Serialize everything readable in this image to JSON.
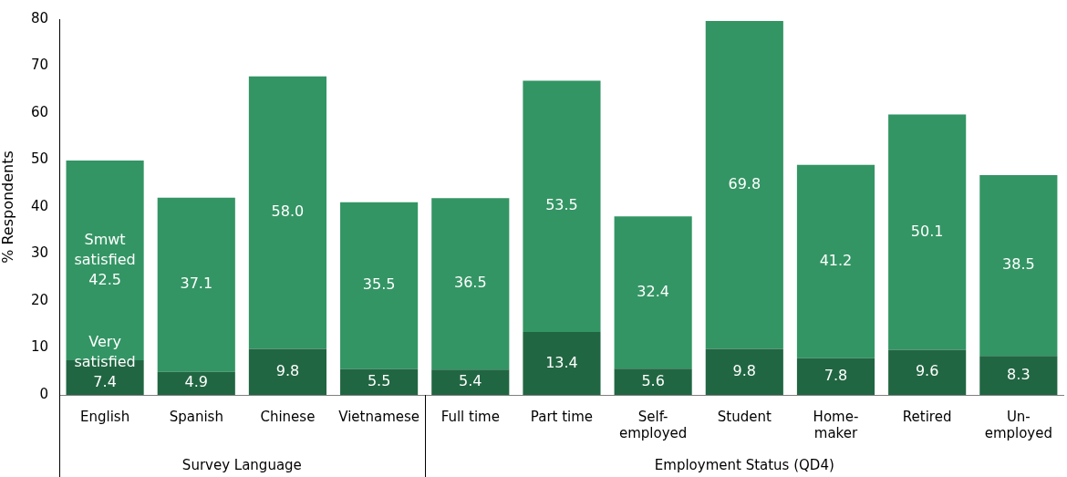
{
  "chart_data": {
    "type": "bar",
    "stacked": true,
    "ylabel": "% Respondents",
    "ylim": [
      0,
      80
    ],
    "yticks": [
      0,
      10,
      20,
      30,
      40,
      50,
      60,
      70,
      80
    ],
    "categories": [
      "English",
      "Spanish",
      "Chinese",
      "Vietnamese",
      "Full time",
      "Part time",
      "Self-employed",
      "Student",
      "Home-maker",
      "Retired",
      "Un-employed"
    ],
    "series": [
      {
        "name": "Very satisfied",
        "color": "#216642",
        "values": [
          7.4,
          4.9,
          9.8,
          5.5,
          5.4,
          13.4,
          5.6,
          9.8,
          7.8,
          9.6,
          8.3
        ],
        "value_labels": [
          "7.4",
          "4.9",
          "9.8",
          "5.5",
          "5.4",
          "13.4",
          "5.6",
          "9.8",
          "7.8",
          "9.6",
          "8.3"
        ]
      },
      {
        "name": "Smwt satisfied",
        "color": "#339564",
        "values": [
          42.5,
          37.1,
          58.0,
          35.5,
          36.5,
          53.5,
          32.4,
          69.8,
          41.2,
          50.1,
          38.5
        ],
        "value_labels": [
          "42.5",
          "37.1",
          "58.0",
          "35.5",
          "36.5",
          "53.5",
          "32.4",
          "69.8",
          "41.2",
          "50.1",
          "38.5"
        ]
      }
    ],
    "annotations": [
      "Survey Language",
      "Employment Status (QD4)"
    ]
  }
}
